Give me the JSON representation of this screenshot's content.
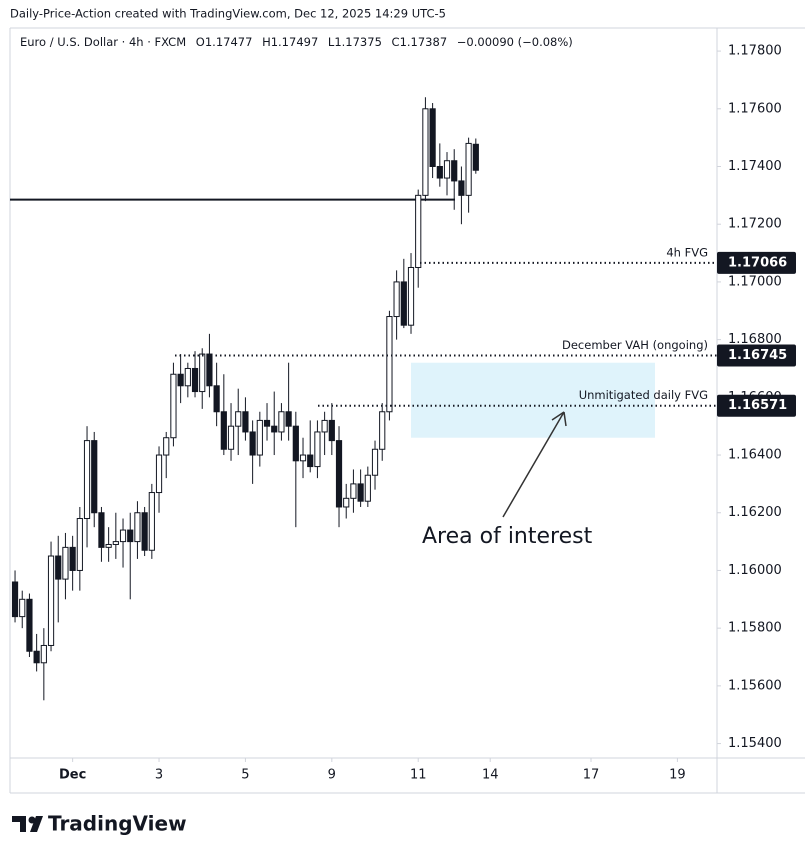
{
  "chart_data": {
    "type": "candlestick",
    "watermark": "Daily-Price-Action created with TradingView.com, Dec 12, 2025 14:29 UTC-5",
    "symbol": "Euro / U.S. Dollar · 4h · FXCM",
    "ohlc_text": [
      "O1.17477",
      "H1.17497",
      "L1.17375",
      "C1.17387",
      "−0.00090 (−0.08%)"
    ],
    "open": [
      1.1596,
      1.1584,
      1.159,
      1.1572,
      1.1568,
      1.1574,
      1.1605,
      1.1597,
      1.1608,
      1.16,
      1.1618,
      1.1645,
      1.162,
      1.1608,
      1.1609,
      1.161,
      1.1614,
      1.161,
      1.162,
      1.1607,
      1.1627,
      1.164,
      1.1646,
      1.1668,
      1.1664,
      1.167,
      1.1662,
      1.1675,
      1.1664,
      1.1655,
      1.1642,
      1.165,
      1.1655,
      1.1648,
      1.164,
      1.1652,
      1.165,
      1.1648,
      1.1655,
      1.165,
      1.1638,
      1.164,
      1.1636,
      1.1648,
      1.1652,
      1.1645,
      1.1622,
      1.1625,
      1.163,
      1.1624,
      1.1633,
      1.1642,
      1.1655,
      1.1688,
      1.17,
      1.1685,
      1.1705,
      1.173,
      1.176,
      1.174,
      1.1736,
      1.1742,
      1.1735,
      1.173,
      1.17477
    ],
    "high": [
      1.16,
      1.1593,
      1.1592,
      1.1578,
      1.158,
      1.161,
      1.1612,
      1.1613,
      1.1612,
      1.1622,
      1.165,
      1.1648,
      1.1622,
      1.1615,
      1.162,
      1.1618,
      1.162,
      1.1624,
      1.1622,
      1.163,
      1.1643,
      1.1648,
      1.1672,
      1.1675,
      1.1672,
      1.1676,
      1.1677,
      1.1682,
      1.1672,
      1.1668,
      1.1658,
      1.1663,
      1.166,
      1.1652,
      1.1655,
      1.1658,
      1.1662,
      1.1658,
      1.1672,
      1.1655,
      1.1646,
      1.1652,
      1.1652,
      1.1655,
      1.1658,
      1.165,
      1.163,
      1.1635,
      1.1635,
      1.1636,
      1.1645,
      1.1658,
      1.169,
      1.1704,
      1.1708,
      1.171,
      1.1732,
      1.1764,
      1.1762,
      1.1748,
      1.1745,
      1.1746,
      1.174,
      1.175,
      1.17497
    ],
    "low": [
      1.1582,
      1.158,
      1.157,
      1.1565,
      1.1555,
      1.1572,
      1.1582,
      1.159,
      1.1593,
      1.1593,
      1.1608,
      1.1615,
      1.1603,
      1.1603,
      1.1604,
      1.1601,
      1.159,
      1.1604,
      1.1605,
      1.1604,
      1.162,
      1.1632,
      1.1643,
      1.1658,
      1.166,
      1.166,
      1.1656,
      1.166,
      1.165,
      1.164,
      1.1638,
      1.164,
      1.1645,
      1.163,
      1.1636,
      1.1645,
      1.164,
      1.1645,
      1.1645,
      1.1615,
      1.1632,
      1.1634,
      1.1632,
      1.164,
      1.164,
      1.1615,
      1.1618,
      1.162,
      1.1622,
      1.1622,
      1.1628,
      1.1638,
      1.1652,
      1.168,
      1.1684,
      1.1682,
      1.1698,
      1.1728,
      1.1736,
      1.1733,
      1.173,
      1.1725,
      1.172,
      1.1724,
      1.17375
    ],
    "close": [
      1.1584,
      1.159,
      1.1572,
      1.1568,
      1.1574,
      1.1605,
      1.1597,
      1.1608,
      1.16,
      1.1618,
      1.1645,
      1.162,
      1.1608,
      1.1609,
      1.161,
      1.1614,
      1.161,
      1.162,
      1.1607,
      1.1627,
      1.164,
      1.1646,
      1.1668,
      1.1664,
      1.167,
      1.1662,
      1.1675,
      1.1664,
      1.1655,
      1.1642,
      1.165,
      1.1655,
      1.1648,
      1.164,
      1.1652,
      1.165,
      1.1648,
      1.1655,
      1.165,
      1.1638,
      1.164,
      1.1636,
      1.1648,
      1.1652,
      1.1645,
      1.1622,
      1.1625,
      1.163,
      1.1624,
      1.1633,
      1.1642,
      1.1655,
      1.1688,
      1.17,
      1.1685,
      1.1705,
      1.173,
      1.176,
      1.174,
      1.1736,
      1.1742,
      1.1735,
      1.173,
      1.1748,
      1.17387
    ],
    "up_color": "#ffffff",
    "down_color": "#131722",
    "xlim": [
      -0.7,
      97.5
    ],
    "xticks": [
      {
        "value": 8,
        "label": "Dec"
      },
      {
        "value": 20,
        "label": "3"
      },
      {
        "value": 32,
        "label": "5"
      },
      {
        "value": 44,
        "label": "9"
      },
      {
        "value": 56,
        "label": "11"
      },
      {
        "value": 66,
        "label": "14"
      },
      {
        "value": 80,
        "label": "17"
      },
      {
        "value": 92,
        "label": "19"
      }
    ],
    "ylim": [
      1.1535,
      1.1788
    ],
    "yticks": [
      {
        "value": 1.178,
        "label": "1.17800"
      },
      {
        "value": 1.176,
        "label": "1.17600"
      },
      {
        "value": 1.174,
        "label": "1.17400"
      },
      {
        "value": 1.172,
        "label": "1.17200"
      },
      {
        "value": 1.17,
        "label": "1.17000"
      },
      {
        "value": 1.168,
        "label": "1.16800"
      },
      {
        "value": 1.166,
        "label": "1.16600"
      },
      {
        "value": 1.164,
        "label": "1.16400"
      },
      {
        "value": 1.162,
        "label": "1.16200"
      },
      {
        "value": 1.16,
        "label": "1.16000"
      },
      {
        "value": 1.158,
        "label": "1.15800"
      },
      {
        "value": 1.156,
        "label": "1.15600"
      },
      {
        "value": 1.154,
        "label": "1.15400"
      }
    ],
    "resistance": 1.17285,
    "levels": [
      {
        "value": 1.17066,
        "label": "4h FVG"
      },
      {
        "value": 1.16745,
        "label": "December VAH (ongoing)"
      },
      {
        "value": 1.16571,
        "label": "Unmitigated daily FVG"
      }
    ],
    "zone": [
      1.1646,
      1.1672
    ],
    "annotation": "Area of interest",
    "brand": "TradingView"
  }
}
